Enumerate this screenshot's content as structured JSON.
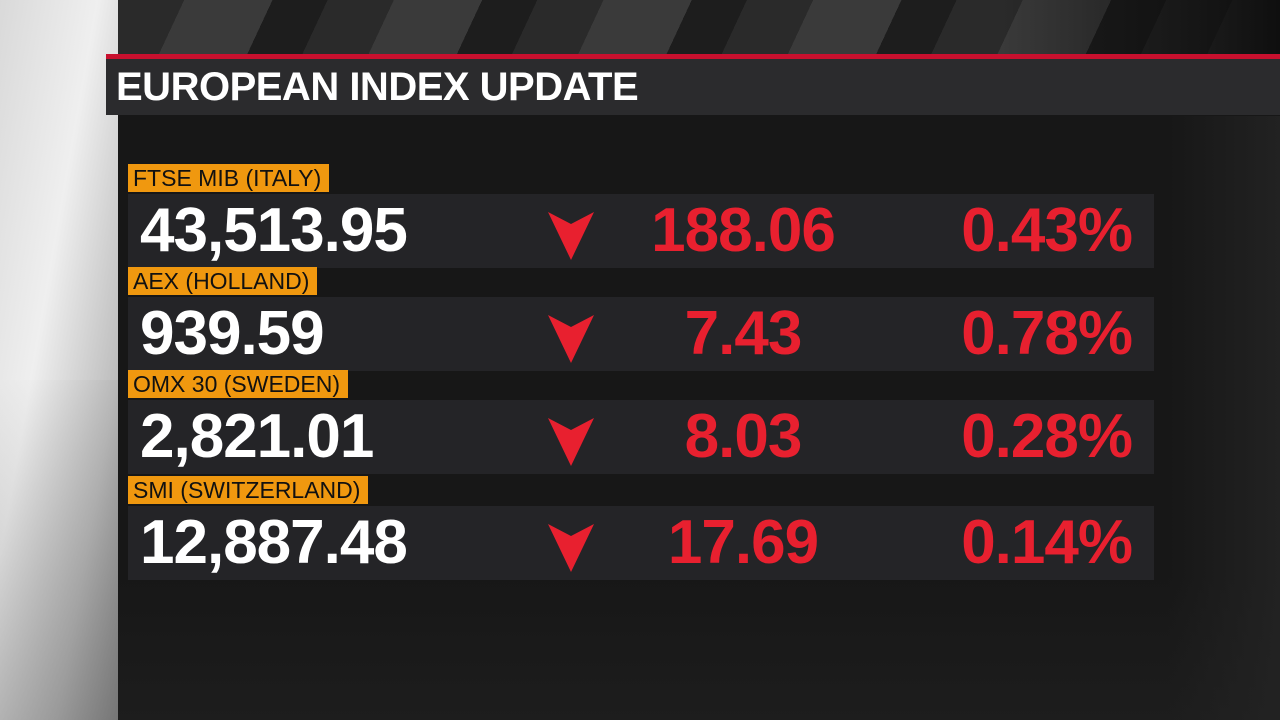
{
  "title": "EUROPEAN INDEX UPDATE",
  "colors": {
    "accent_red": "#c8102e",
    "down_red": "#e8202f",
    "label_orange": "#f0980f"
  },
  "indices": [
    {
      "name": "FTSE MIB (ITALY)",
      "value": "43,513.95",
      "direction_icon": "down-arrow-icon",
      "change": "188.06",
      "percent": "0.43%"
    },
    {
      "name": "AEX (HOLLAND)",
      "value": "939.59",
      "direction_icon": "down-arrow-icon",
      "change": "7.43",
      "percent": "0.78%"
    },
    {
      "name": "OMX 30 (SWEDEN)",
      "value": "2,821.01",
      "direction_icon": "down-arrow-icon",
      "change": "8.03",
      "percent": "0.28%"
    },
    {
      "name": "SMI (SWITZERLAND)",
      "value": "12,887.48",
      "direction_icon": "down-arrow-icon",
      "change": "17.69",
      "percent": "0.14%"
    }
  ]
}
